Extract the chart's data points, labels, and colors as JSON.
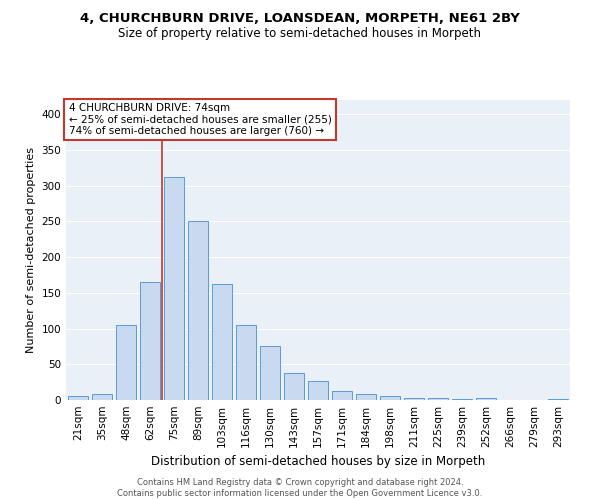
{
  "title": "4, CHURCHBURN DRIVE, LOANSDEAN, MORPETH, NE61 2BY",
  "subtitle": "Size of property relative to semi-detached houses in Morpeth",
  "xlabel": "Distribution of semi-detached houses by size in Morpeth",
  "ylabel": "Number of semi-detached properties",
  "footer_line1": "Contains HM Land Registry data © Crown copyright and database right 2024.",
  "footer_line2": "Contains public sector information licensed under the Open Government Licence v3.0.",
  "annotation_line1": "4 CHURCHBURN DRIVE: 74sqm",
  "annotation_line2": "← 25% of semi-detached houses are smaller (255)",
  "annotation_line3": "74% of semi-detached houses are larger (760) →",
  "bar_color": "#c8d9f0",
  "bar_edge_color": "#5b9bd5",
  "vline_color": "#c0392b",
  "annotation_box_color": "#c0392b",
  "background_color": "#eaf0f8",
  "grid_color": "#ffffff",
  "categories": [
    "21sqm",
    "35sqm",
    "48sqm",
    "62sqm",
    "75sqm",
    "89sqm",
    "103sqm",
    "116sqm",
    "130sqm",
    "143sqm",
    "157sqm",
    "171sqm",
    "184sqm",
    "198sqm",
    "211sqm",
    "225sqm",
    "239sqm",
    "252sqm",
    "266sqm",
    "279sqm",
    "293sqm"
  ],
  "values": [
    5,
    9,
    105,
    165,
    312,
    250,
    162,
    105,
    75,
    38,
    27,
    13,
    9,
    5,
    3,
    3,
    1,
    3,
    0,
    0,
    2
  ],
  "ylim": [
    0,
    420
  ],
  "yticks": [
    0,
    50,
    100,
    150,
    200,
    250,
    300,
    350,
    400
  ],
  "vline_x_index": 4,
  "title_fontsize": 9.5,
  "subtitle_fontsize": 8.5,
  "ylabel_fontsize": 8,
  "xlabel_fontsize": 8.5,
  "tick_fontsize": 7.5,
  "annotation_fontsize": 7.5,
  "footer_fontsize": 6
}
